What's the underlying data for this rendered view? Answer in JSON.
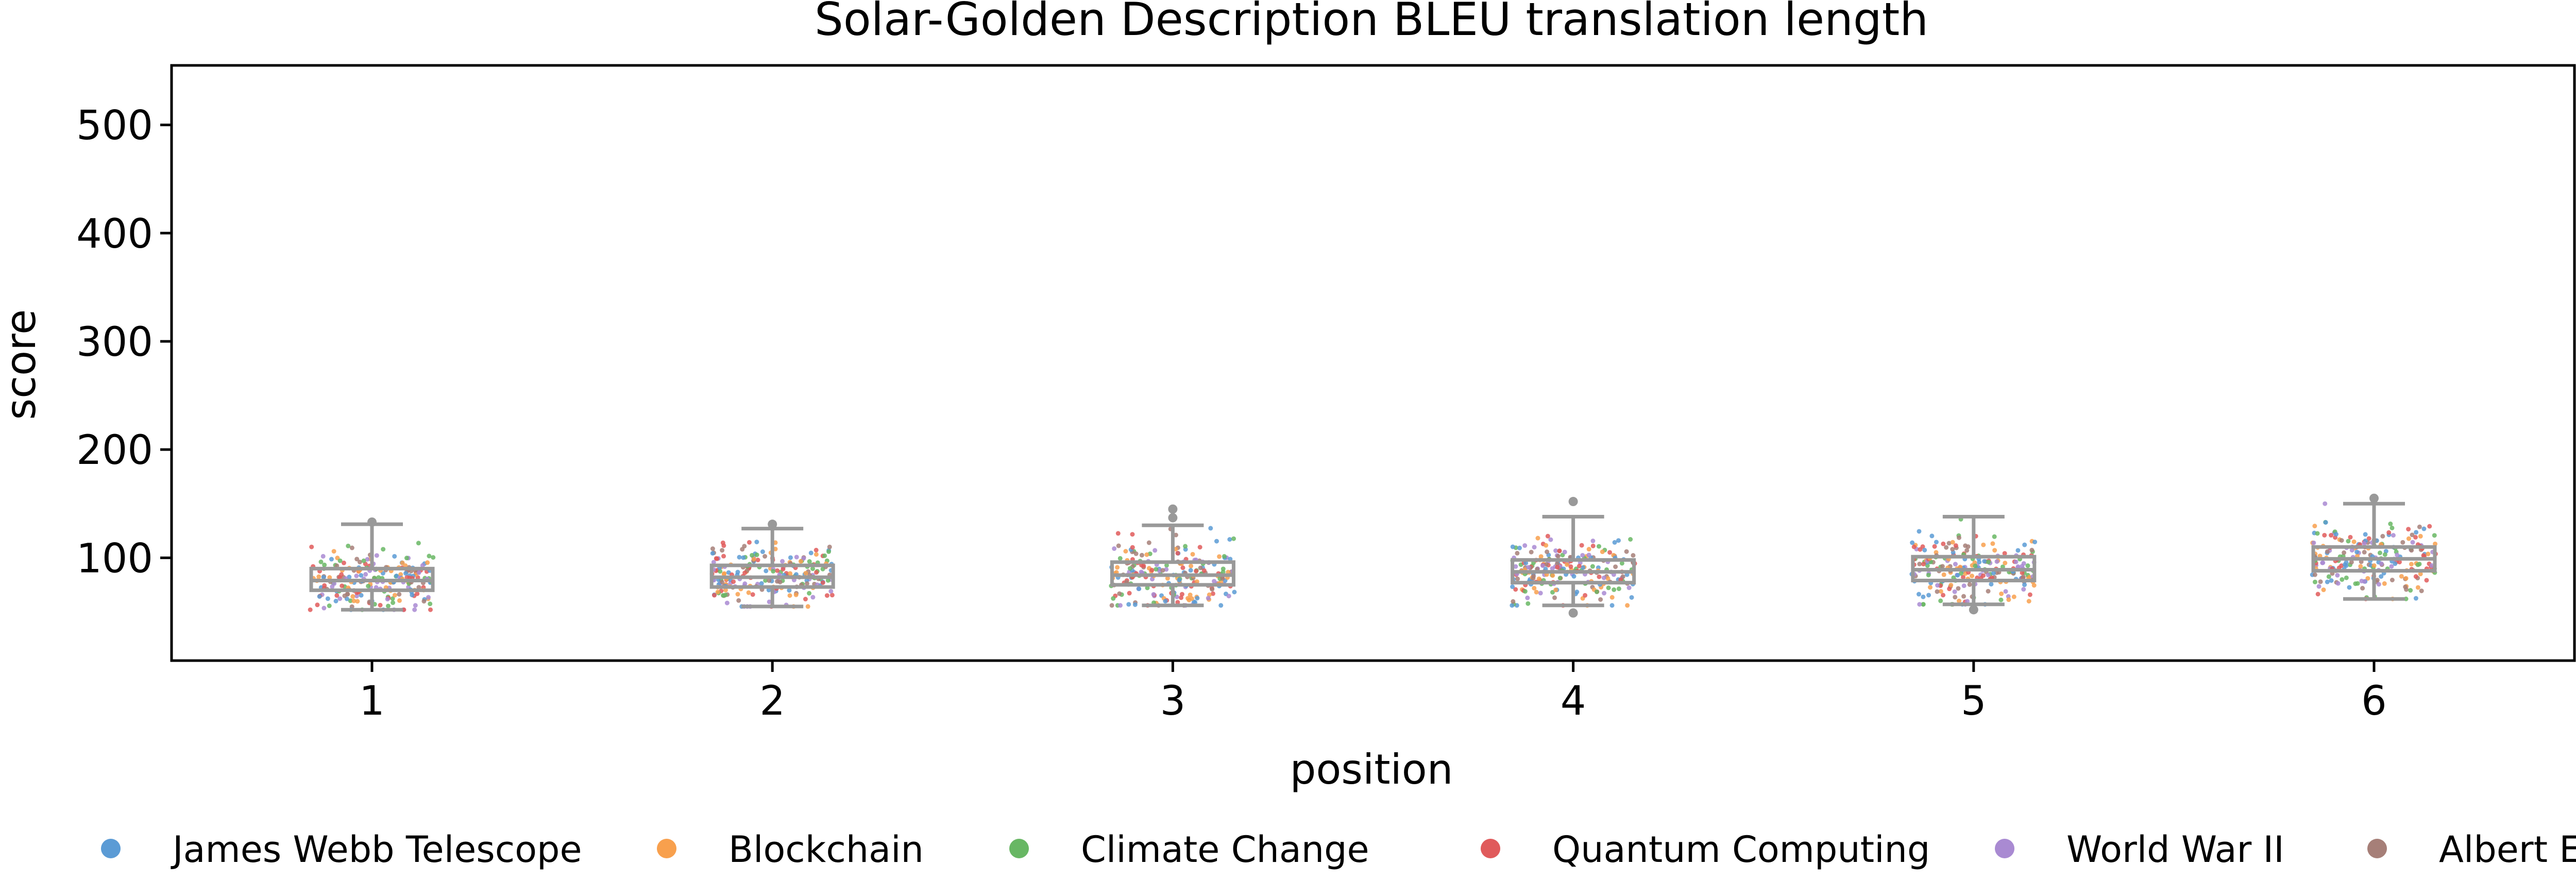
{
  "chart_data": {
    "type": "box",
    "title": "Solar-Golden Description BLEU translation length",
    "xlabel": "position",
    "ylabel": "score",
    "categories": [
      "1",
      "2",
      "3",
      "4",
      "5",
      "6"
    ],
    "ylim": [
      5,
      555
    ],
    "yticks": [
      100,
      200,
      300,
      400,
      500
    ],
    "grid": false,
    "legend_position": "bottom",
    "box_color": "#999999",
    "boxes": [
      {
        "category": "1",
        "whisker_low": 52,
        "q1": 70,
        "median": 79,
        "q3": 90,
        "whisker_high": 131,
        "outliers": [
          133
        ]
      },
      {
        "category": "2",
        "whisker_low": 55,
        "q1": 73,
        "median": 82,
        "q3": 93,
        "whisker_high": 127,
        "outliers": [
          131
        ]
      },
      {
        "category": "3",
        "whisker_low": 56,
        "q1": 75,
        "median": 84,
        "q3": 96,
        "whisker_high": 130,
        "outliers": [
          137,
          145
        ]
      },
      {
        "category": "4",
        "whisker_low": 56,
        "q1": 77,
        "median": 87,
        "q3": 98,
        "whisker_high": 138,
        "outliers": [
          49,
          152
        ]
      },
      {
        "category": "5",
        "whisker_low": 57,
        "q1": 79,
        "median": 89,
        "q3": 101,
        "whisker_high": 138,
        "outliers": [
          52
        ]
      },
      {
        "category": "6",
        "whisker_low": 62,
        "q1": 88,
        "median": 99,
        "q3": 110,
        "whisker_high": 150,
        "outliers": [
          155
        ]
      }
    ],
    "series": [
      {
        "name": "James Webb Telescope",
        "color": "#5b9bd5"
      },
      {
        "name": "Blockchain",
        "color": "#f8a04d"
      },
      {
        "name": "Climate Change",
        "color": "#68b764"
      },
      {
        "name": "Quantum Computing",
        "color": "#e05a5b"
      },
      {
        "name": "World War II",
        "color": "#a98ad2"
      },
      {
        "name": "Albert Einstein",
        "color": "#a67f78"
      }
    ],
    "points_per_category": 220
  }
}
